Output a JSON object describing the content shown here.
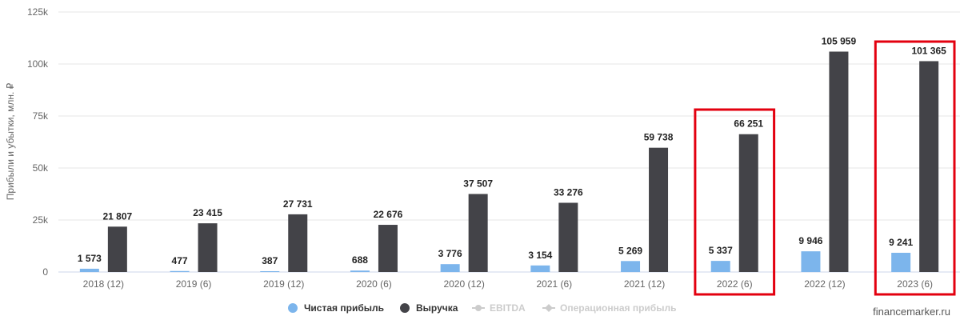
{
  "chart_data": {
    "type": "bar",
    "ylabel": "Прибыли и убытки, млн. ₽",
    "ylim": [
      0,
      125000
    ],
    "yticks": [
      0,
      25000,
      50000,
      75000,
      100000,
      125000
    ],
    "ytick_labels": [
      "0",
      "25k",
      "50k",
      "75k",
      "100k",
      "125k"
    ],
    "grid": true,
    "categories": [
      "2018 (12)",
      "2019 (6)",
      "2019 (12)",
      "2020 (6)",
      "2020 (12)",
      "2021 (6)",
      "2021 (12)",
      "2022 (6)",
      "2022 (12)",
      "2023 (6)"
    ],
    "series": [
      {
        "name": "Чистая прибыль",
        "color": "#7cb5ec",
        "values": [
          1573,
          477,
          387,
          688,
          3776,
          3154,
          5269,
          5337,
          9946,
          9241
        ],
        "labels": [
          "1 573",
          "477",
          "387",
          "688",
          "3 776",
          "3 154",
          "5 269",
          "5 337",
          "9 946",
          "9 241"
        ]
      },
      {
        "name": "Выручка",
        "color": "#434348",
        "values": [
          21807,
          23415,
          27731,
          22676,
          37507,
          33276,
          59738,
          66251,
          105959,
          101365
        ],
        "labels": [
          "21 807",
          "23 415",
          "27 731",
          "22 676",
          "37 507",
          "33 276",
          "59 738",
          "66 251",
          "105 959",
          "101 365"
        ]
      }
    ],
    "highlighted_categories": [
      "2022 (6)",
      "2023 (6)"
    ],
    "highlight_color": "#e3000f",
    "legend": {
      "placement": "bottom",
      "items": [
        {
          "name": "Чистая прибыль",
          "color": "#7cb5ec",
          "marker": "circle",
          "enabled": true
        },
        {
          "name": "Выручка",
          "color": "#434348",
          "marker": "circle",
          "enabled": true
        },
        {
          "name": "EBITDA",
          "color": "#cccccc",
          "marker": "line-circle",
          "enabled": false
        },
        {
          "name": "Операционная прибыль",
          "color": "#cccccc",
          "marker": "line-diamond",
          "enabled": false
        }
      ]
    },
    "watermark": "financemarker.ru"
  }
}
